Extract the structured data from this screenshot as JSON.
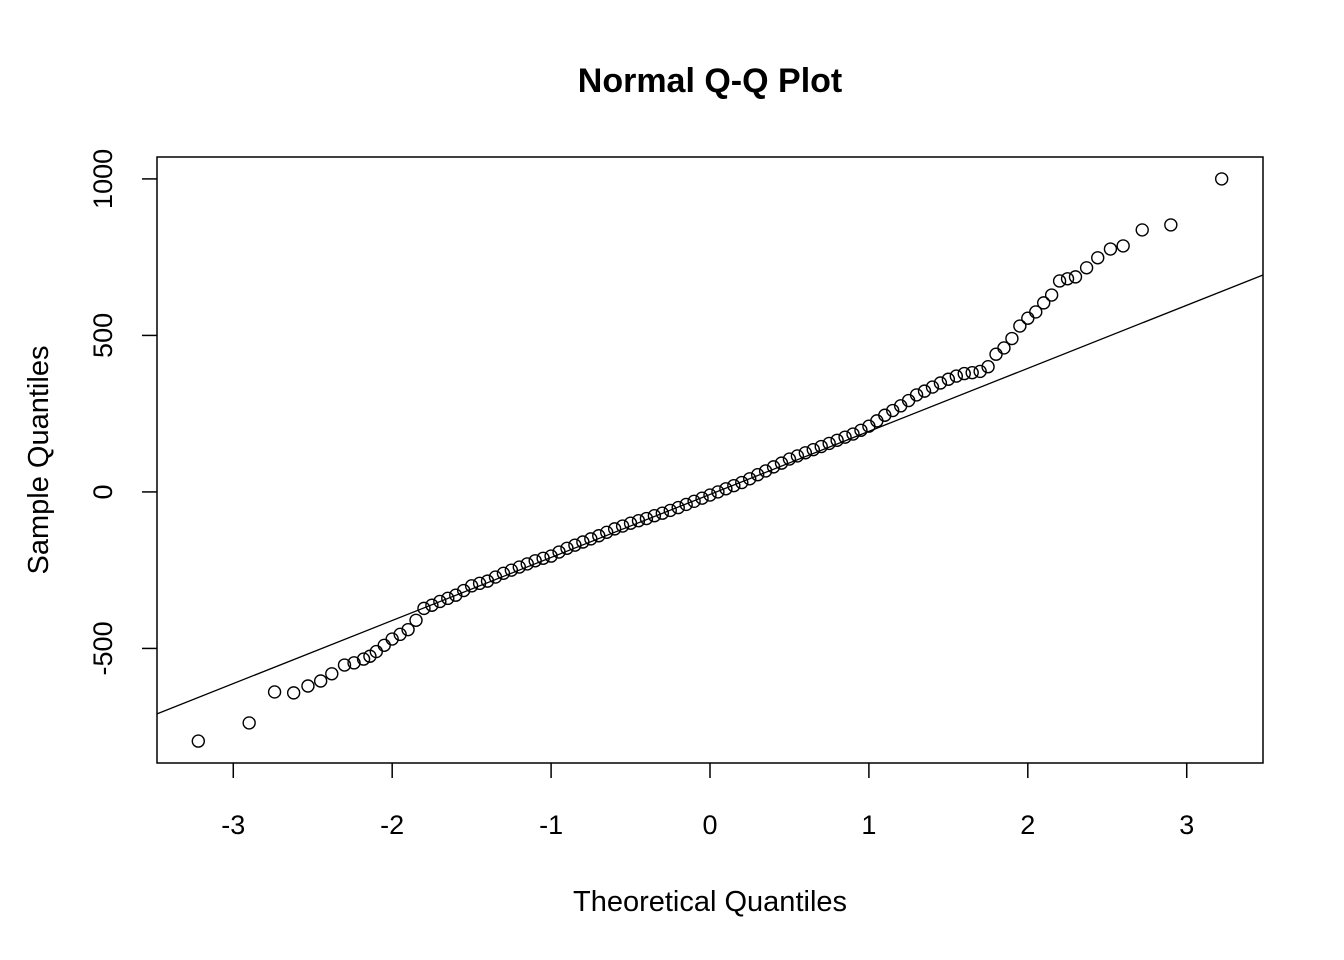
{
  "chart_data": {
    "type": "scatter",
    "title": "Normal Q-Q Plot",
    "x_label": "Theoretical Quantiles",
    "y_label": "Sample Quantiles",
    "xlim": [
      -3.48,
      3.48
    ],
    "ylim": [
      -866,
      1070
    ],
    "xticks": [
      -3,
      -2,
      -1,
      0,
      1,
      2,
      3
    ],
    "yticks": [
      -500,
      0,
      500,
      1000
    ],
    "color": "#000000",
    "x": [
      -3.22,
      -2.9,
      -2.74,
      -2.62,
      -2.53,
      -2.45,
      -2.38,
      -2.3,
      -2.24,
      -2.18,
      -2.14,
      -2.1,
      -2.05,
      -2.0,
      -1.95,
      -1.9,
      -1.85,
      -1.8,
      -1.75,
      -1.7,
      -1.65,
      -1.6,
      -1.55,
      -1.5,
      -1.45,
      -1.4,
      -1.35,
      -1.3,
      -1.25,
      -1.2,
      -1.15,
      -1.1,
      -1.05,
      -1.0,
      -0.95,
      -0.9,
      -0.85,
      -0.8,
      -0.75,
      -0.7,
      -0.65,
      -0.6,
      -0.55,
      -0.5,
      -0.45,
      -0.4,
      -0.35,
      -0.3,
      -0.25,
      -0.2,
      -0.15,
      -0.1,
      -0.05,
      0,
      0.05,
      0.1,
      0.15,
      0.2,
      0.25,
      0.3,
      0.35,
      0.4,
      0.45,
      0.5,
      0.55,
      0.6,
      0.65,
      0.7,
      0.75,
      0.8,
      0.85,
      0.9,
      0.95,
      1.0,
      1.05,
      1.1,
      1.15,
      1.2,
      1.25,
      1.3,
      1.35,
      1.4,
      1.45,
      1.5,
      1.55,
      1.6,
      1.65,
      1.7,
      1.75,
      1.8,
      1.85,
      1.9,
      1.95,
      2.0,
      2.05,
      2.1,
      2.15,
      2.2,
      2.25,
      2.3,
      2.37,
      2.44,
      2.52,
      2.6,
      2.72,
      2.9,
      3.22
    ],
    "values": [
      -796,
      -738,
      -639,
      -642,
      -620,
      -604,
      -581,
      -553,
      -546,
      -534,
      -525,
      -510,
      -490,
      -470,
      -455,
      -440,
      -410,
      -372,
      -362,
      -350,
      -340,
      -330,
      -315,
      -300,
      -292,
      -285,
      -272,
      -260,
      -250,
      -240,
      -230,
      -220,
      -212,
      -205,
      -192,
      -180,
      -170,
      -160,
      -150,
      -140,
      -129,
      -118,
      -109,
      -100,
      -92,
      -85,
      -76,
      -68,
      -59,
      -50,
      -40,
      -30,
      -20,
      -10,
      0,
      10,
      20,
      30,
      42,
      55,
      67,
      80,
      92,
      105,
      115,
      125,
      135,
      145,
      155,
      165,
      175,
      185,
      197,
      210,
      227,
      245,
      260,
      275,
      292,
      310,
      322,
      335,
      348,
      360,
      370,
      378,
      381,
      385,
      400,
      440,
      460,
      490,
      530,
      555,
      575,
      604,
      629,
      674,
      681,
      687,
      716,
      748,
      776,
      786,
      837,
      853,
      1000
    ],
    "reference_line": {
      "x": [
        -3.48,
        3.48
      ],
      "y": [
        -709,
        693
      ]
    }
  }
}
